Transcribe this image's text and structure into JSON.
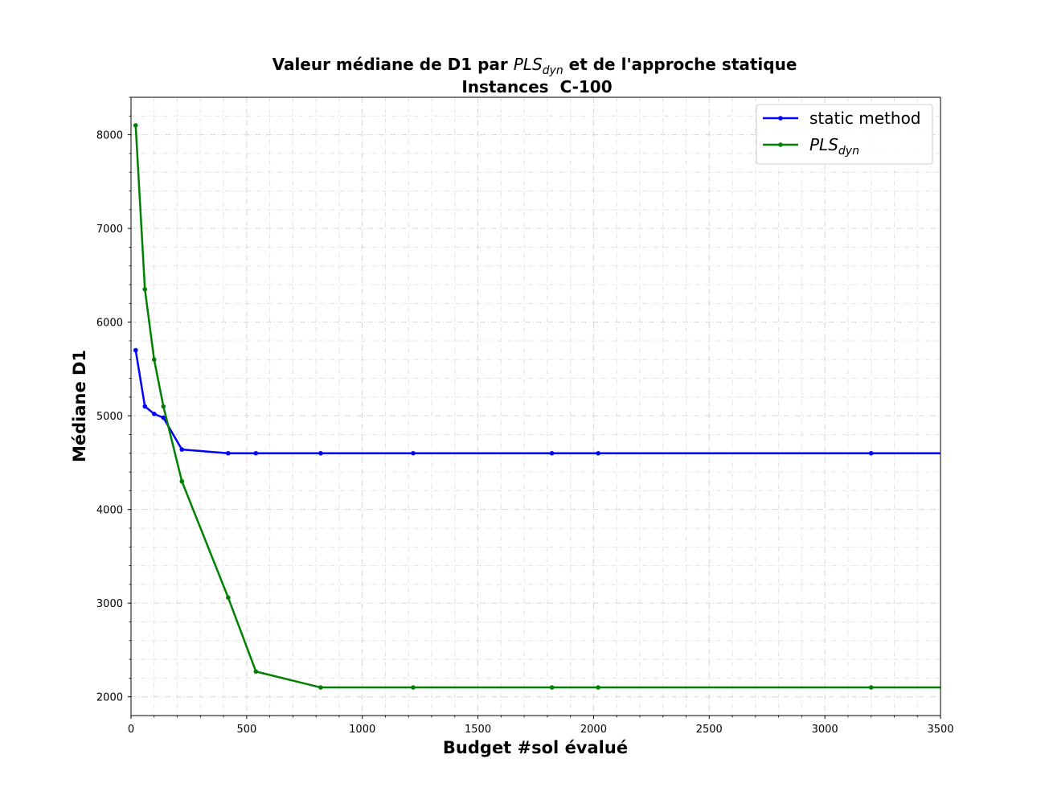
{
  "chart_data": {
    "type": "line",
    "title": {
      "line1_prefix": "Valeur médiane de D1 par ",
      "line1_math": "PLS",
      "line1_math_sub": "dyn",
      "line1_suffix": " et de l'approche statique",
      "line2": "Instances  C-100"
    },
    "xlabel": "Budget #sol évalué",
    "ylabel": "Médiane D1",
    "xlim": [
      0,
      3500
    ],
    "ylim": [
      1800,
      8400
    ],
    "xticks": [
      0,
      500,
      1000,
      1500,
      2000,
      2500,
      3000,
      3500
    ],
    "yticks": [
      2000,
      3000,
      4000,
      5000,
      6000,
      7000,
      8000
    ],
    "grid": true,
    "legend_position": "top-right",
    "series": [
      {
        "name": "static method",
        "name_math": "",
        "name_sub": "",
        "color": "#0000ff",
        "x": [
          20,
          60,
          100,
          140,
          220,
          420,
          540,
          820,
          1220,
          1820,
          2020,
          3200,
          3500
        ],
        "y": [
          5700,
          5100,
          5020,
          4980,
          4640,
          4600,
          4600,
          4600,
          4600,
          4600,
          4600,
          4600,
          4600
        ],
        "show_marker_at_end": false
      },
      {
        "name": "",
        "name_math": "PLS",
        "name_sub": "dyn",
        "color": "#008000",
        "x": [
          20,
          60,
          100,
          140,
          220,
          420,
          540,
          820,
          1220,
          1820,
          2020,
          3200,
          3500
        ],
        "y": [
          8100,
          6350,
          5600,
          5100,
          4300,
          3060,
          2270,
          2100,
          2100,
          2100,
          2100,
          2100,
          2100
        ],
        "show_marker_at_end": false
      }
    ]
  }
}
